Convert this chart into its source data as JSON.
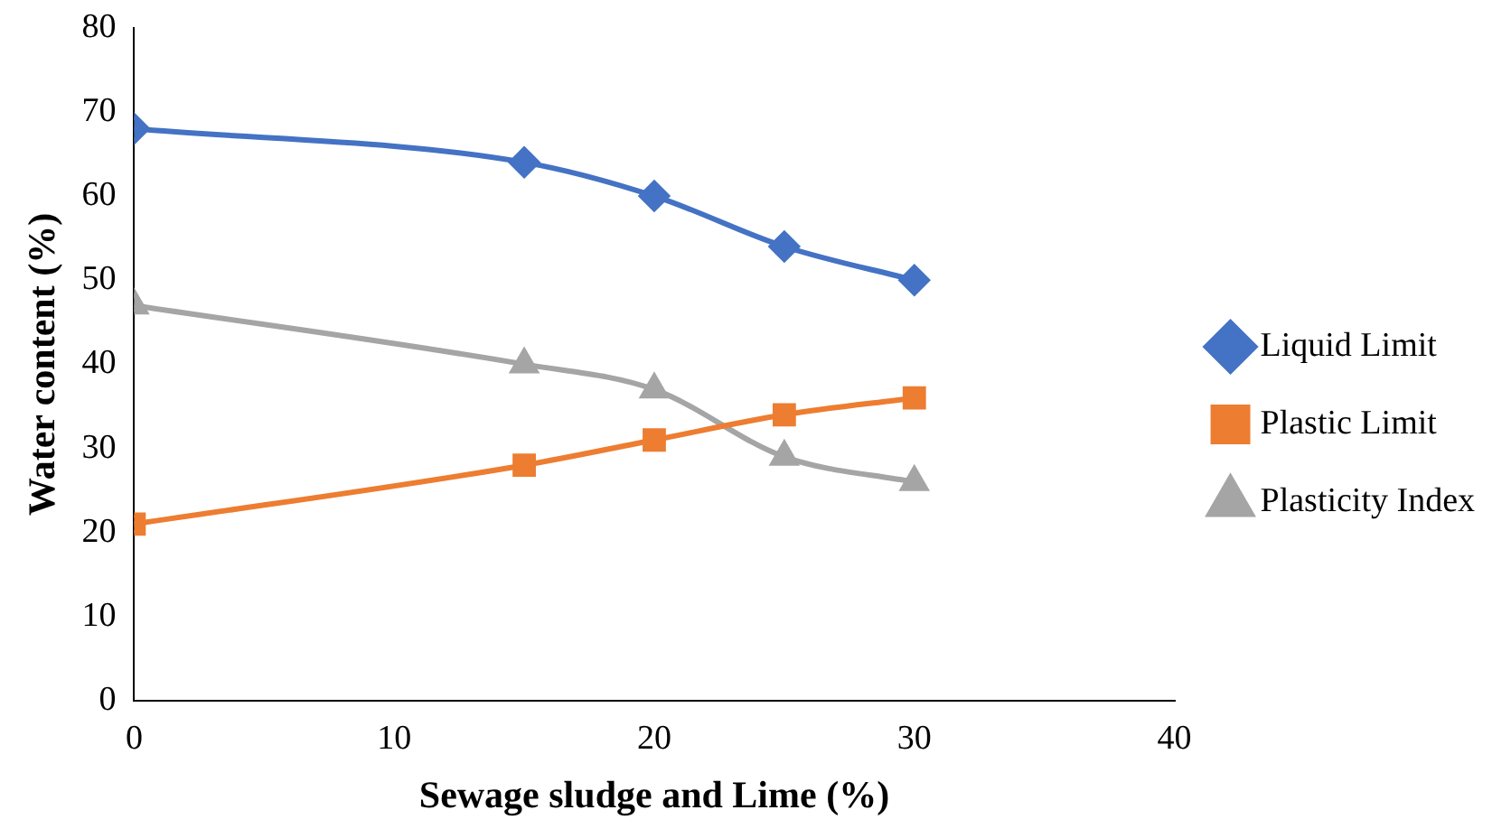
{
  "chart_data": {
    "type": "line",
    "xlabel": "Sewage sludge and Lime (%)",
    "ylabel": "Water content (%)",
    "x": [
      0,
      15,
      20,
      25,
      30
    ],
    "series": [
      {
        "name": "Liquid Limit",
        "color": "#4472c4",
        "marker": "diamond",
        "values": [
          68,
          64,
          60,
          54,
          50
        ]
      },
      {
        "name": "Plastic Limit",
        "color": "#ed7d31",
        "marker": "square",
        "values": [
          21,
          28,
          31,
          34,
          36
        ]
      },
      {
        "name": "Plasticity Index",
        "color": "#a5a5a5",
        "marker": "triangle",
        "values": [
          47,
          40,
          37,
          29,
          26
        ]
      }
    ],
    "xlim": [
      0,
      40
    ],
    "xticks": [
      0,
      10,
      20,
      30,
      40
    ],
    "ylim": [
      0,
      80
    ],
    "yticks": [
      0,
      10,
      20,
      30,
      40,
      50,
      60,
      70,
      80
    ],
    "grid": false,
    "legend": "right"
  }
}
